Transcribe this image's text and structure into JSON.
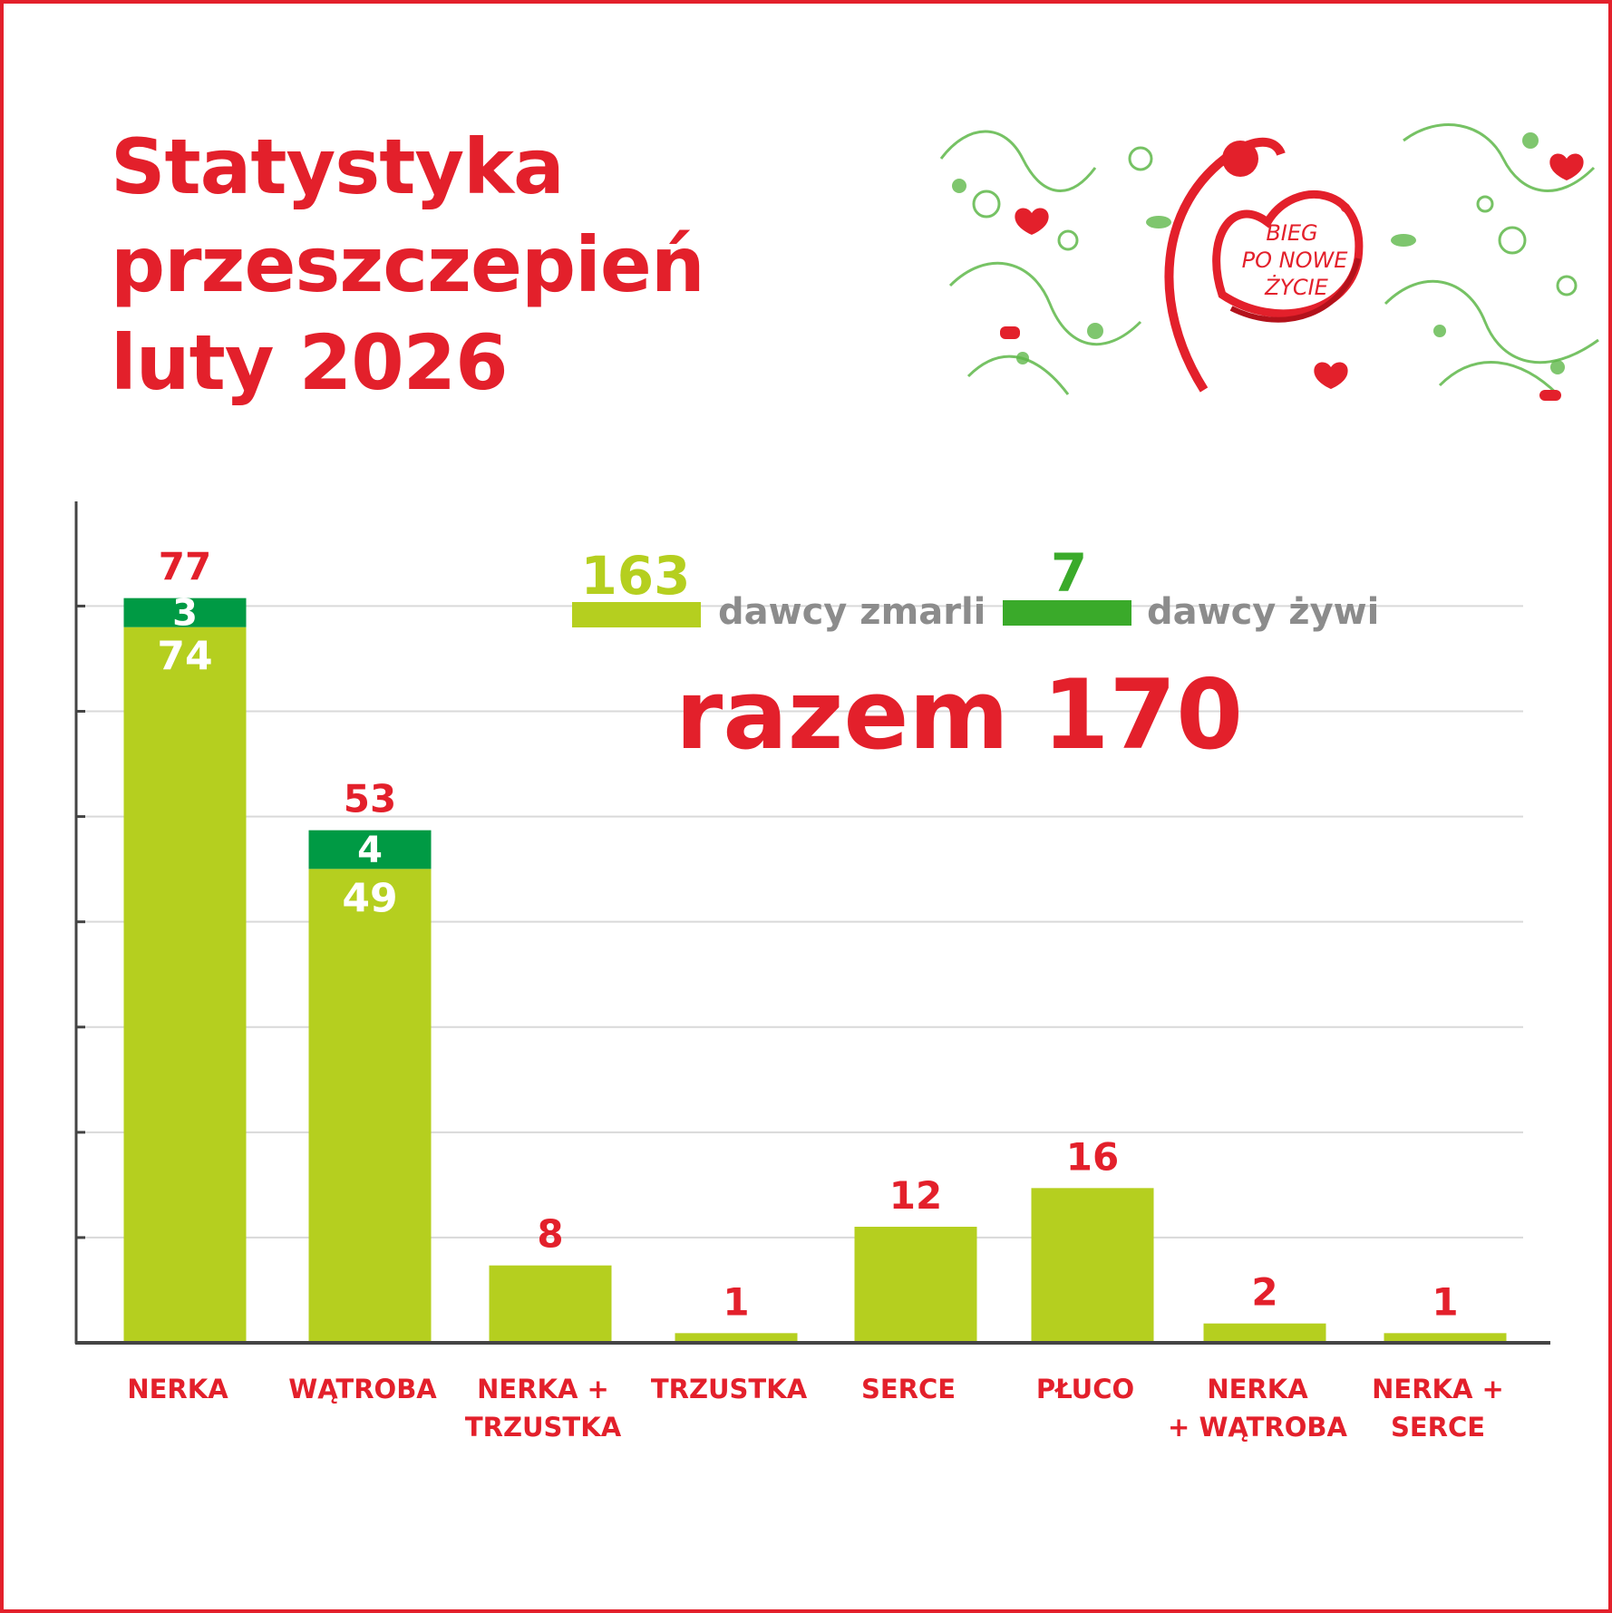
{
  "title": {
    "line1": "Statystyka",
    "line2": "przeszczepień",
    "line3": "luty 2026"
  },
  "logo": {
    "text_line1": "BIEG",
    "text_line2": "PO NOWE",
    "text_line3": "ŻYCIE",
    "registered": "®"
  },
  "legend": {
    "deceased_count": "163",
    "deceased_label": "dawcy zmarli",
    "living_count": "7",
    "living_label": "dawcy żywi",
    "total": "razem 170"
  },
  "colors": {
    "accent": "#e3202b",
    "deceased": "#b5cf1f",
    "living_bar": "#009a44",
    "living_legend": "#3aaa2a",
    "legend_text": "#8c8c8c",
    "axis": "#444444",
    "grid": "#d9d9d9"
  },
  "chart_data": {
    "type": "bar",
    "stacked": true,
    "categories": [
      [
        "NERKA"
      ],
      [
        "WĄTROBA"
      ],
      [
        "NERKA +",
        "TRZUSTKA"
      ],
      [
        "TRZUSTKA"
      ],
      [
        "SERCE"
      ],
      [
        "PŁUCO"
      ],
      [
        "NERKA",
        "+ WĄTROBA"
      ],
      [
        "NERKA +",
        "SERCE"
      ]
    ],
    "series": [
      {
        "name": "dawcy zmarli",
        "values": [
          74,
          49,
          8,
          1,
          12,
          16,
          2,
          1
        ]
      },
      {
        "name": "dawcy żywi",
        "values": [
          3,
          4,
          0,
          0,
          0,
          0,
          0,
          0
        ]
      }
    ],
    "totals": [
      77,
      53,
      8,
      1,
      12,
      16,
      2,
      1
    ],
    "ylim": [
      0,
      87
    ],
    "grid": true
  }
}
